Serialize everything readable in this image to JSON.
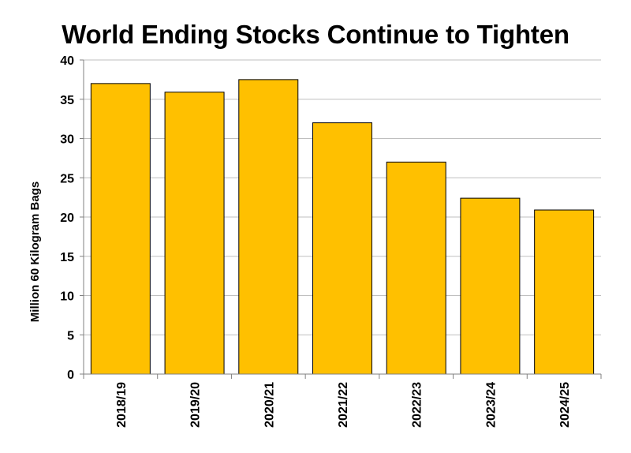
{
  "chart_data": {
    "type": "bar",
    "title": "World Ending Stocks Continue to Tighten",
    "xlabel": "",
    "ylabel": "Million 60 Kilogram Bags",
    "categories": [
      "2018/19",
      "2019/20",
      "2020/21",
      "2021/22",
      "2022/23",
      "2023/24",
      "2024/25"
    ],
    "values": [
      37.0,
      35.9,
      37.5,
      32.0,
      27.0,
      22.4,
      20.9
    ],
    "ylim": [
      0,
      40
    ],
    "yticks": [
      0,
      5,
      10,
      15,
      20,
      25,
      30,
      35,
      40
    ],
    "grid": true,
    "legend": "none",
    "bar_color": "#FFC000",
    "bar_edge_color": "#000000",
    "grid_color": "#BFBFBF"
  }
}
